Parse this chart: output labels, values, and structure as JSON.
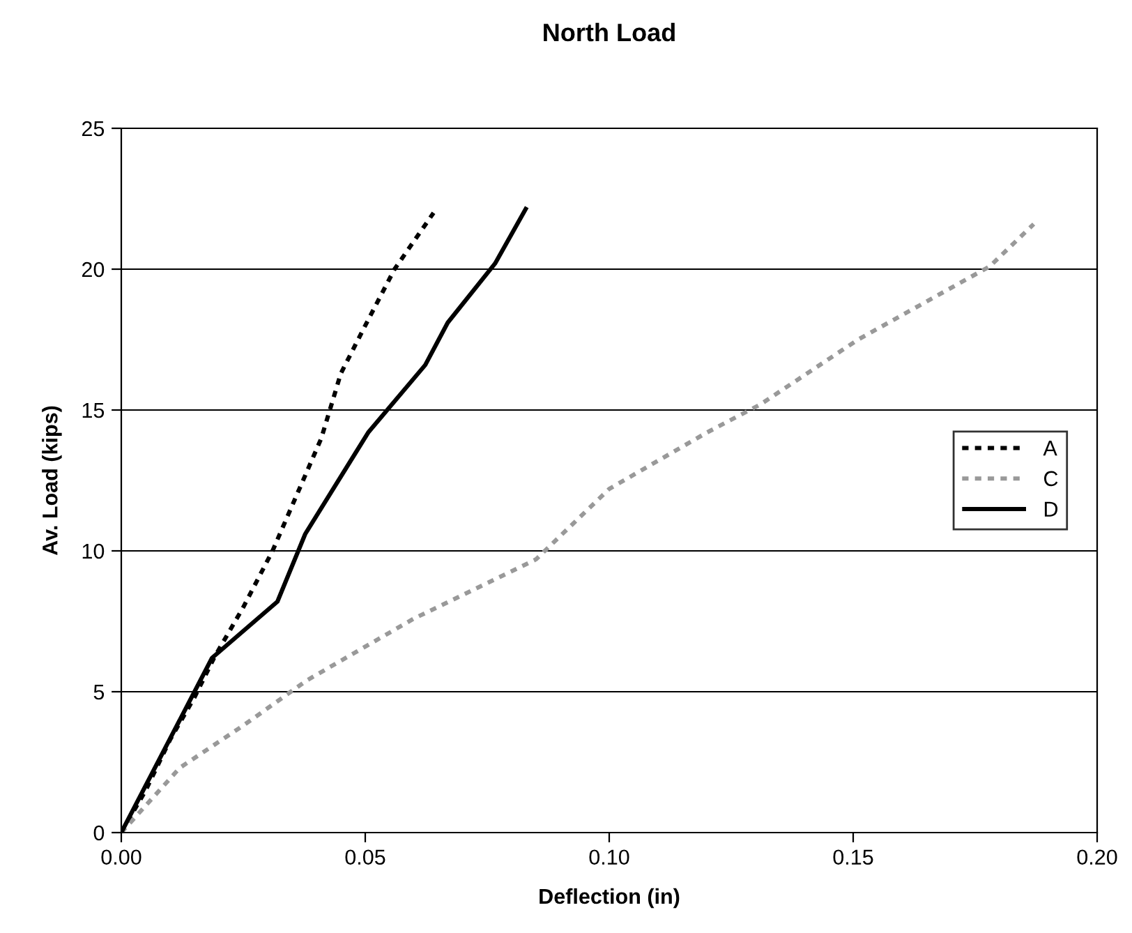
{
  "chart_data": {
    "type": "line",
    "title": "North Load",
    "xlabel": "Deflection (in)",
    "ylabel": "Av. Load (kips)",
    "xlim": [
      0,
      0.2
    ],
    "xticks": [
      {
        "value": 0,
        "label": "0.00"
      },
      {
        "value": 0.05,
        "label": "0.05"
      },
      {
        "value": 0.1,
        "label": "0.10"
      },
      {
        "value": 0.15,
        "label": "0.15"
      },
      {
        "value": 0.2,
        "label": "0.20"
      }
    ],
    "ylim": [
      0,
      25
    ],
    "yticks": [
      0,
      5,
      10,
      15,
      20,
      25
    ],
    "grid": "y",
    "legend": "right",
    "marker": "none",
    "series": [
      {
        "name": "A",
        "color": "#000000",
        "line_style": "dotted",
        "x": [
          0,
          0.005,
          0.01,
          0.015,
          0.019,
          0.025,
          0.031,
          0.036,
          0.041,
          0.045,
          0.05,
          0.056,
          0.064
        ],
        "values": [
          0,
          1.5,
          3.3,
          4.8,
          6.2,
          8,
          10,
          12,
          14,
          16.3,
          18,
          20,
          22
        ]
      },
      {
        "name": "C",
        "color": "#999999",
        "line_style": "dotted",
        "x": [
          0,
          0.012,
          0.025,
          0.038,
          0.06,
          0.085,
          0.1,
          0.12,
          0.131,
          0.151,
          0.178,
          0.187
        ],
        "values": [
          0,
          2.3,
          3.8,
          5.4,
          7.6,
          9.7,
          12.2,
          14.2,
          15.2,
          17.5,
          20.1,
          21.6
        ]
      },
      {
        "name": "D",
        "color": "#000000",
        "line_style": "solid",
        "x": [
          0,
          0.0186,
          0.032,
          0.0377,
          0.0506,
          0.0623,
          0.0669,
          0.0766,
          0.0831
        ],
        "values": [
          0,
          6.2,
          8.2,
          10.6,
          14.2,
          16.6,
          18.1,
          20.2,
          22.2
        ]
      }
    ]
  }
}
